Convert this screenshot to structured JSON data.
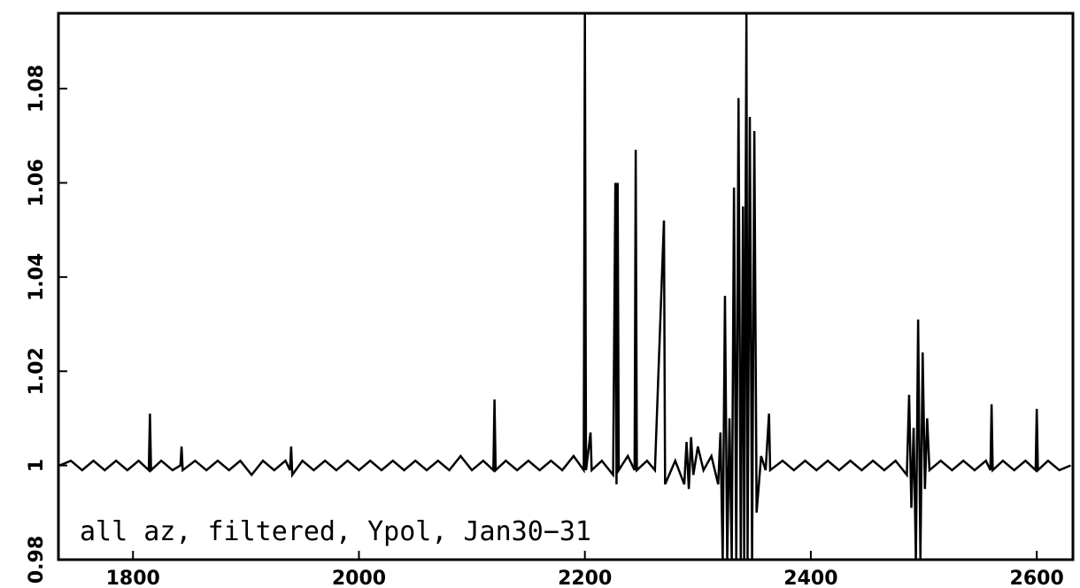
{
  "chart_data": {
    "type": "line",
    "annotation": "all az, filtered, Ypol, Jan30−31",
    "xlim": [
      1734,
      2632
    ],
    "xticks": [
      1800,
      2000,
      2200,
      2400,
      2600
    ],
    "ylim": [
      0.98,
      1.096
    ],
    "yticks": [
      0.98,
      1,
      1.02,
      1.04,
      1.06,
      1.08
    ],
    "grid": false,
    "series": [
      {
        "color": "#000000",
        "x": [
          1735,
          1745,
          1755,
          1765,
          1775,
          1785,
          1795,
          1805,
          1814,
          1815,
          1816,
          1825,
          1835,
          1842,
          1843,
          1844,
          1855,
          1865,
          1875,
          1885,
          1895,
          1905,
          1915,
          1925,
          1935,
          1939,
          1940,
          1941,
          1950,
          1960,
          1970,
          1980,
          1990,
          2000,
          2010,
          2020,
          2030,
          2040,
          2050,
          2060,
          2070,
          2080,
          2090,
          2100,
          2110,
          2119,
          2120,
          2121,
          2130,
          2140,
          2150,
          2160,
          2170,
          2180,
          2190,
          2199,
          2200,
          2201,
          2205,
          2206,
          2215,
          2225,
          2227,
          2228,
          2229,
          2230,
          2238,
          2244,
          2245,
          2246,
          2255,
          2262,
          2270,
          2271,
          2280,
          2288,
          2290,
          2292,
          2294,
          2296,
          2300,
          2305,
          2312,
          2318,
          2320,
          2322,
          2324,
          2326,
          2328,
          2330,
          2332,
          2334,
          2336,
          2338,
          2340,
          2341,
          2343,
          2344,
          2346,
          2348,
          2350,
          2352,
          2356,
          2360,
          2363,
          2364,
          2375,
          2385,
          2395,
          2405,
          2415,
          2425,
          2435,
          2445,
          2455,
          2465,
          2475,
          2485,
          2487,
          2489,
          2491,
          2493,
          2495,
          2497,
          2499,
          2501,
          2503,
          2505,
          2515,
          2525,
          2535,
          2545,
          2555,
          2559,
          2560,
          2561,
          2570,
          2580,
          2590,
          2599,
          2600,
          2601,
          2610,
          2620,
          2630
        ],
        "values": [
          1.0,
          1.001,
          0.999,
          1.001,
          0.999,
          1.001,
          0.999,
          1.001,
          0.999,
          1.011,
          0.999,
          1.001,
          0.999,
          1.0,
          1.004,
          0.999,
          1.001,
          0.999,
          1.001,
          0.999,
          1.001,
          0.998,
          1.001,
          0.999,
          1.001,
          0.999,
          1.004,
          0.998,
          1.001,
          0.999,
          1.001,
          0.999,
          1.001,
          0.999,
          1.001,
          0.999,
          1.001,
          0.999,
          1.001,
          0.999,
          1.001,
          0.999,
          1.002,
          0.999,
          1.001,
          0.999,
          1.014,
          0.999,
          1.001,
          0.999,
          1.001,
          0.999,
          1.001,
          0.999,
          1.002,
          0.999,
          1.096,
          0.999,
          1.007,
          0.999,
          1.001,
          0.998,
          1.06,
          0.996,
          1.06,
          0.999,
          1.002,
          0.999,
          1.067,
          0.999,
          1.001,
          0.999,
          1.052,
          0.996,
          1.001,
          0.996,
          1.005,
          0.995,
          1.006,
          0.998,
          1.004,
          0.999,
          1.002,
          0.996,
          1.007,
          0.98,
          1.036,
          0.98,
          1.01,
          0.98,
          1.059,
          0.98,
          1.078,
          0.98,
          1.055,
          0.98,
          1.096,
          0.98,
          1.074,
          0.98,
          1.071,
          0.99,
          1.002,
          0.999,
          1.011,
          0.999,
          1.001,
          0.999,
          1.001,
          0.999,
          1.001,
          0.999,
          1.001,
          0.999,
          1.001,
          0.999,
          1.001,
          0.998,
          1.015,
          0.991,
          1.008,
          0.98,
          1.031,
          0.98,
          1.024,
          0.995,
          1.01,
          0.999,
          1.001,
          0.999,
          1.001,
          0.999,
          1.001,
          0.999,
          1.013,
          0.999,
          1.001,
          0.999,
          1.001,
          0.999,
          1.012,
          0.999,
          1.001,
          0.999,
          1.0
        ]
      }
    ]
  }
}
